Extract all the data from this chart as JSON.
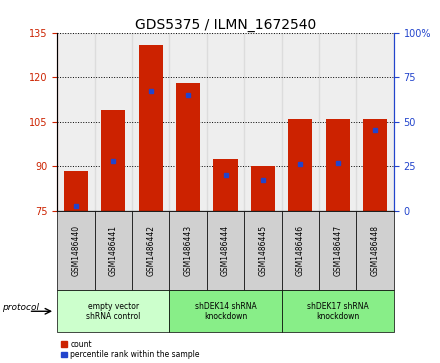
{
  "title": "GDS5375 / ILMN_1672540",
  "samples": [
    "GSM1486440",
    "GSM1486441",
    "GSM1486442",
    "GSM1486443",
    "GSM1486444",
    "GSM1486445",
    "GSM1486446",
    "GSM1486447",
    "GSM1486448"
  ],
  "count_values": [
    88.5,
    109.0,
    131.0,
    118.0,
    92.5,
    90.0,
    106.0,
    106.0,
    106.0
  ],
  "percentile_values": [
    2.5,
    28.0,
    67.0,
    65.0,
    20.0,
    17.0,
    26.0,
    27.0,
    45.0
  ],
  "ylim_left": [
    75,
    135
  ],
  "ylim_right": [
    0,
    100
  ],
  "yticks_left": [
    75,
    90,
    105,
    120,
    135
  ],
  "yticks_right": [
    0,
    25,
    50,
    75,
    100
  ],
  "bar_color": "#cc2200",
  "percentile_color": "#2244cc",
  "bar_bottom": 75,
  "groups": [
    {
      "label": "empty vector\nshRNA control",
      "start": 0,
      "end": 3,
      "color": "#ccffcc"
    },
    {
      "label": "shDEK14 shRNA\nknockdown",
      "start": 3,
      "end": 6,
      "color": "#88ee88"
    },
    {
      "label": "shDEK17 shRNA\nknockdown",
      "start": 6,
      "end": 9,
      "color": "#88ee88"
    }
  ],
  "protocol_label": "protocol",
  "legend_count_label": "count",
  "legend_percentile_label": "percentile rank within the sample",
  "title_fontsize": 10,
  "tick_fontsize": 7,
  "label_fontsize": 7,
  "axis_color_left": "#cc2200",
  "axis_color_right": "#2244cc",
  "sample_bg_color": "#d0d0d0"
}
